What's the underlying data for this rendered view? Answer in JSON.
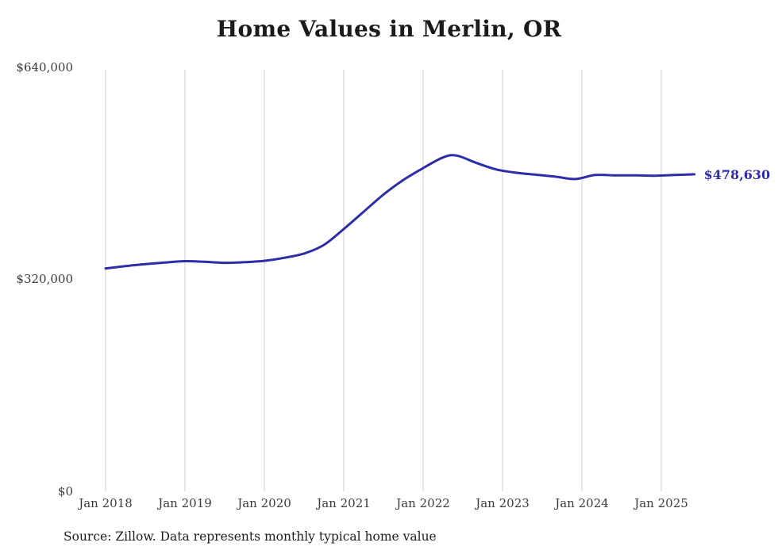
{
  "chart_data": {
    "type": "line",
    "title": "Home Values in Merlin, OR",
    "xlabel": "",
    "ylabel": "",
    "ylim": [
      0,
      640000
    ],
    "grid": "vertical-only",
    "legend": "none",
    "line_color": "#2d2daa",
    "gridline_color": "#cccccc",
    "y_ticks": [
      {
        "value": 0,
        "label": "$0"
      },
      {
        "value": 320000,
        "label": "$320,000"
      },
      {
        "value": 640000,
        "label": "$640,000"
      }
    ],
    "x_ticks": [
      "Jan 2018",
      "Jan 2019",
      "Jan 2020",
      "Jan 2021",
      "Jan 2022",
      "Jan 2023",
      "Jan 2024",
      "Jan 2025"
    ],
    "end_label": "$478,630",
    "source": "Source: Zillow. Data represents monthly typical home value",
    "series": [
      {
        "name": "Typical home value",
        "points": [
          {
            "month": "2018-01",
            "value": 336500
          },
          {
            "month": "2018-04",
            "value": 340000
          },
          {
            "month": "2018-07",
            "value": 343000
          },
          {
            "month": "2018-10",
            "value": 345500
          },
          {
            "month": "2019-01",
            "value": 347500
          },
          {
            "month": "2019-04",
            "value": 346500
          },
          {
            "month": "2019-07",
            "value": 345000
          },
          {
            "month": "2019-10",
            "value": 346000
          },
          {
            "month": "2020-01",
            "value": 348000
          },
          {
            "month": "2020-04",
            "value": 352500
          },
          {
            "month": "2020-07",
            "value": 359000
          },
          {
            "month": "2020-10",
            "value": 372000
          },
          {
            "month": "2021-01",
            "value": 396000
          },
          {
            "month": "2021-04",
            "value": 422000
          },
          {
            "month": "2021-07",
            "value": 448000
          },
          {
            "month": "2021-10",
            "value": 470000
          },
          {
            "month": "2022-01",
            "value": 488000
          },
          {
            "month": "2022-04",
            "value": 504000
          },
          {
            "month": "2022-06",
            "value": 507000
          },
          {
            "month": "2022-09",
            "value": 496000
          },
          {
            "month": "2022-12",
            "value": 486000
          },
          {
            "month": "2023-03",
            "value": 481000
          },
          {
            "month": "2023-06",
            "value": 478000
          },
          {
            "month": "2023-09",
            "value": 475000
          },
          {
            "month": "2023-12",
            "value": 471500
          },
          {
            "month": "2024-03",
            "value": 477500
          },
          {
            "month": "2024-06",
            "value": 477000
          },
          {
            "month": "2024-09",
            "value": 477000
          },
          {
            "month": "2024-12",
            "value": 476500
          },
          {
            "month": "2025-03",
            "value": 477500
          },
          {
            "month": "2025-06",
            "value": 478630
          }
        ]
      }
    ]
  }
}
